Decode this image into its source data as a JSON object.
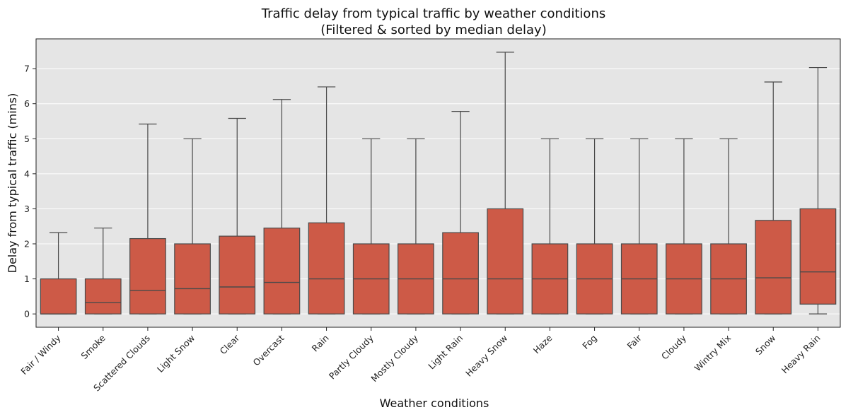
{
  "chart_data": {
    "type": "box",
    "title_line1": "Traffic delay from typical traffic by weather conditions",
    "title_line2": "(Filtered & sorted by median delay)",
    "xlabel": "Weather conditions",
    "ylabel": "Delay from typical traffic (mins)",
    "ylim": [
      -0.38,
      7.85
    ],
    "yticks": [
      "0",
      "1",
      "2",
      "3",
      "4",
      "5",
      "6",
      "7"
    ],
    "grid": true,
    "colors": {
      "box_fill": "#CD5A47",
      "box_edge": "#4a4a4a",
      "plot_background": "#E5E5E5",
      "grid": "#ffffff"
    },
    "categories": [
      "Fair / Windy",
      "Smoke",
      "Scattered Clouds",
      "Light Snow",
      "Clear",
      "Overcast",
      "Rain",
      "Partly Cloudy",
      "Mostly Cloudy",
      "Light Rain",
      "Heavy Snow",
      "Haze",
      "Fog",
      "Fair",
      "Cloudy",
      "Wintry Mix",
      "Snow",
      "Heavy Rain"
    ],
    "boxes": [
      {
        "whisker_low": 0,
        "q1": 0,
        "median": 0,
        "q3": 1.0,
        "whisker_high": 2.32
      },
      {
        "whisker_low": 0,
        "q1": 0,
        "median": 0.32,
        "q3": 1.0,
        "whisker_high": 2.45
      },
      {
        "whisker_low": 0,
        "q1": 0,
        "median": 0.67,
        "q3": 2.15,
        "whisker_high": 5.42
      },
      {
        "whisker_low": 0,
        "q1": 0,
        "median": 0.72,
        "q3": 2.0,
        "whisker_high": 5.0
      },
      {
        "whisker_low": 0,
        "q1": 0,
        "median": 0.77,
        "q3": 2.22,
        "whisker_high": 5.58
      },
      {
        "whisker_low": 0,
        "q1": 0,
        "median": 0.9,
        "q3": 2.45,
        "whisker_high": 6.12
      },
      {
        "whisker_low": 0,
        "q1": 0,
        "median": 1.0,
        "q3": 2.6,
        "whisker_high": 6.48
      },
      {
        "whisker_low": 0,
        "q1": 0,
        "median": 1.0,
        "q3": 2.0,
        "whisker_high": 5.0
      },
      {
        "whisker_low": 0,
        "q1": 0,
        "median": 1.0,
        "q3": 2.0,
        "whisker_high": 5.0
      },
      {
        "whisker_low": 0,
        "q1": 0,
        "median": 1.0,
        "q3": 2.32,
        "whisker_high": 5.78
      },
      {
        "whisker_low": 0,
        "q1": 0,
        "median": 1.0,
        "q3": 3.0,
        "whisker_high": 7.47
      },
      {
        "whisker_low": 0,
        "q1": 0,
        "median": 1.0,
        "q3": 2.0,
        "whisker_high": 5.0
      },
      {
        "whisker_low": 0,
        "q1": 0,
        "median": 1.0,
        "q3": 2.0,
        "whisker_high": 5.0
      },
      {
        "whisker_low": 0,
        "q1": 0,
        "median": 1.0,
        "q3": 2.0,
        "whisker_high": 5.0
      },
      {
        "whisker_low": 0,
        "q1": 0,
        "median": 1.0,
        "q3": 2.0,
        "whisker_high": 5.0
      },
      {
        "whisker_low": 0,
        "q1": 0,
        "median": 1.0,
        "q3": 2.0,
        "whisker_high": 5.0
      },
      {
        "whisker_low": 0,
        "q1": 0,
        "median": 1.03,
        "q3": 2.67,
        "whisker_high": 6.62
      },
      {
        "whisker_low": 0,
        "q1": 0.28,
        "median": 1.2,
        "q3": 3.0,
        "whisker_high": 7.03
      }
    ]
  }
}
